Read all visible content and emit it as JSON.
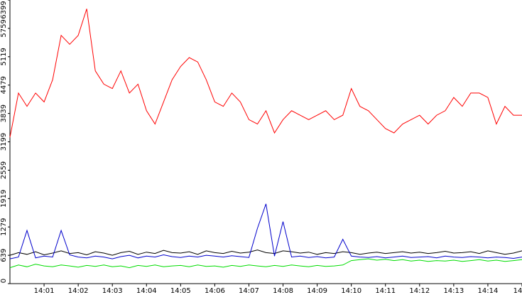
{
  "chart_data": {
    "type": "line",
    "x": [
      "14:00:00",
      "14:00:15",
      "14:00:30",
      "14:00:45",
      "14:01:00",
      "14:01:15",
      "14:01:30",
      "14:01:45",
      "14:02:00",
      "14:02:15",
      "14:02:30",
      "14:02:45",
      "14:03:00",
      "14:03:15",
      "14:03:30",
      "14:03:45",
      "14:04:00",
      "14:04:15",
      "14:04:30",
      "14:04:45",
      "14:05:00",
      "14:05:15",
      "14:05:30",
      "14:05:45",
      "14:06:00",
      "14:06:15",
      "14:06:30",
      "14:06:45",
      "14:07:00",
      "14:07:15",
      "14:07:30",
      "14:07:45",
      "14:08:00",
      "14:08:15",
      "14:08:30",
      "14:08:45",
      "14:09:00",
      "14:09:15",
      "14:09:30",
      "14:09:45",
      "14:10:00",
      "14:10:15",
      "14:10:30",
      "14:10:45",
      "14:11:00",
      "14:11:15",
      "14:11:30",
      "14:11:45",
      "14:12:00",
      "14:12:15",
      "14:12:30",
      "14:12:45",
      "14:13:00",
      "14:13:15",
      "14:13:30",
      "14:13:45",
      "14:14:00",
      "14:14:15",
      "14:14:30",
      "14:14:45",
      "14:15:00"
    ],
    "series": [
      {
        "color": "#ff0000",
        "values": [
          3300,
          4300,
          4000,
          4300,
          4100,
          4600,
          5600,
          5400,
          5600,
          6200,
          4800,
          4500,
          4400,
          4800,
          4300,
          4500,
          3900,
          3600,
          4100,
          4600,
          4900,
          5100,
          5000,
          4600,
          4100,
          4000,
          4300,
          4100,
          3700,
          3600,
          3900,
          3400,
          3700,
          3900,
          3800,
          3700,
          3800,
          3900,
          3700,
          3800,
          4400,
          4000,
          3900,
          3700,
          3500,
          3400,
          3600,
          3700,
          3800,
          3600,
          3800,
          3900,
          4200,
          4000,
          4300,
          4300,
          4200,
          3600,
          4000,
          3800,
          3800
        ]
      },
      {
        "color": "#000000",
        "values": [
          640,
          700,
          660,
          720,
          650,
          690,
          740,
          680,
          700,
          650,
          720,
          690,
          640,
          700,
          730,
          660,
          710,
          680,
          750,
          700,
          690,
          720,
          660,
          740,
          700,
          680,
          730,
          690,
          710,
          760,
          700,
          680,
          740,
          720,
          690,
          710,
          660,
          700,
          680,
          720,
          700,
          660,
          690,
          710,
          680,
          700,
          720,
          690,
          710,
          680,
          700,
          730,
          690,
          700,
          720,
          680,
          740,
          700,
          660,
          690,
          740
        ]
      },
      {
        "color": "#0000cc",
        "values": [
          560,
          600,
          1200,
          580,
          620,
          600,
          1200,
          650,
          600,
          580,
          620,
          600,
          560,
          610,
          640,
          580,
          620,
          600,
          650,
          610,
          590,
          620,
          600,
          640,
          620,
          600,
          630,
          610,
          590,
          1250,
          1800,
          620,
          1400,
          600,
          620,
          590,
          610,
          580,
          600,
          1000,
          620,
          600,
          590,
          610,
          580,
          600,
          620,
          590,
          600,
          610,
          580,
          620,
          600,
          590,
          610,
          600,
          580,
          600,
          590,
          570,
          600
        ]
      },
      {
        "color": "#00dd00",
        "values": [
          360,
          420,
          380,
          440,
          400,
          380,
          420,
          400,
          370,
          410,
          390,
          420,
          380,
          400,
          360,
          410,
          390,
          420,
          380,
          400,
          410,
          380,
          420,
          390,
          400,
          370,
          410,
          390,
          420,
          400,
          380,
          410,
          390,
          420,
          400,
          380,
          410,
          390,
          400,
          420,
          520,
          540,
          560,
          530,
          550,
          520,
          540,
          510,
          530,
          500,
          520,
          510,
          530,
          500,
          520,
          540,
          510,
          530,
          500,
          520,
          540
        ]
      }
    ],
    "xlim": [
      "14:00:00",
      "14:15:00"
    ],
    "xticks": [
      "14:01",
      "14:02",
      "14:03",
      "14:04",
      "14:05",
      "14:06",
      "14:07",
      "14:08",
      "14:09",
      "14:10",
      "14:11",
      "14:12",
      "14:13",
      "14:14",
      {
        "value": "14:15",
        "label": "14"
      }
    ],
    "ylim": [
      0,
      6399
    ],
    "yticks": [
      0,
      639,
      1279,
      1919,
      2559,
      3199,
      3839,
      4479,
      5119,
      5759,
      6399
    ]
  }
}
